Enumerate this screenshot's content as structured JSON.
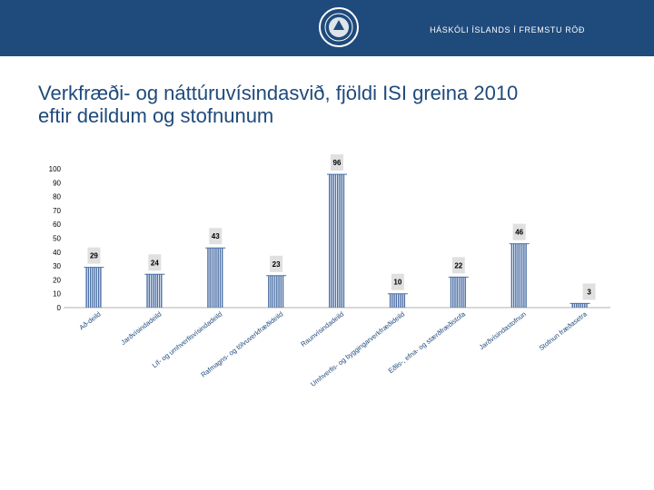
{
  "header": {
    "tagline": "HÁSKÓLI ÍSLANDS Í FREMSTU RÖÐ",
    "logo_icon": "university-seal-icon",
    "background": "#1f4a7c"
  },
  "slide": {
    "title_line1": "Verkfræði- og náttúruvísindasvið, fjöldi ISI greina 2010",
    "title_line2": "eftir deildum og stofnunum",
    "title_color": "#1f4a7c"
  },
  "chart_data": {
    "type": "bar",
    "title": "",
    "xlabel": "",
    "ylabel": "",
    "categories": [
      "Að-deild",
      "Jarðvísindadeild",
      "Líf- og umhverfisvísindadeild",
      "Rafmagns- og tölvuverkfræðideild",
      "Raunvísindadeild",
      "Umhverfis- og byggingarverkfræðideild",
      "Eðlis-, efna- og stærðfræðistofa",
      "Jarðvísindastofnun",
      "Stofnun fræðasetra"
    ],
    "values": [
      29,
      24,
      43,
      23,
      96,
      10,
      22,
      46,
      3
    ],
    "ylim": [
      0,
      100
    ],
    "yticks": [
      0,
      10,
      20,
      30,
      40,
      50,
      60,
      70,
      80,
      90,
      100
    ],
    "bar_color": "#4a6fa5",
    "label_bg": "#e0e0e0"
  }
}
